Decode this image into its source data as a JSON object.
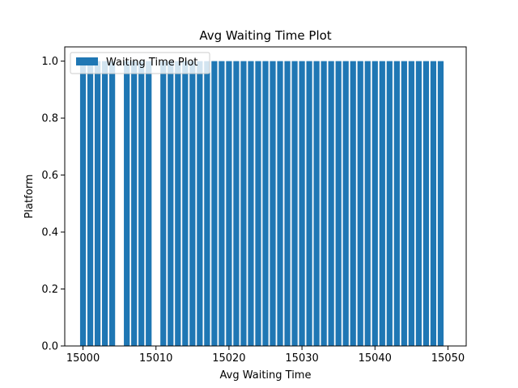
{
  "chart_data": {
    "type": "bar",
    "title": "Avg Waiting Time Plot",
    "xlabel": "Avg Waiting Time",
    "ylabel": "Platform",
    "xlim": [
      14997.5,
      15052.5
    ],
    "ylim": [
      0,
      1.05
    ],
    "xticks": [
      15000,
      15010,
      15020,
      15030,
      15040,
      15050
    ],
    "yticks": [
      0.0,
      0.2,
      0.4,
      0.6,
      0.8,
      1.0
    ],
    "xtick_labels": [
      "15000",
      "15010",
      "15020",
      "15030",
      "15040",
      "15050"
    ],
    "ytick_labels": [
      "0.0",
      "0.2",
      "0.4",
      "0.6",
      "0.8",
      "1.0"
    ],
    "legend": {
      "position": "top-left",
      "entries": [
        "Waiting Time Plot"
      ]
    },
    "grid": false,
    "series": [
      {
        "name": "Waiting Time Plot",
        "color": "#1f77b4",
        "bar_width": 0.8,
        "x": [
          15000,
          15001,
          15002,
          15003,
          15004,
          15006,
          15007,
          15008,
          15009,
          15011,
          15012,
          15013,
          15014,
          15015,
          15016,
          15017,
          15018,
          15019,
          15020,
          15021,
          15022,
          15023,
          15024,
          15025,
          15026,
          15027,
          15028,
          15029,
          15030,
          15031,
          15032,
          15033,
          15034,
          15035,
          15036,
          15037,
          15038,
          15039,
          15040,
          15041,
          15042,
          15043,
          15044,
          15045,
          15046,
          15047,
          15048,
          15049
        ],
        "values": [
          1,
          1,
          1,
          1,
          1,
          1,
          1,
          1,
          1,
          1,
          1,
          1,
          1,
          1,
          1,
          1,
          1,
          1,
          1,
          1,
          1,
          1,
          1,
          1,
          1,
          1,
          1,
          1,
          1,
          1,
          1,
          1,
          1,
          1,
          1,
          1,
          1,
          1,
          1,
          1,
          1,
          1,
          1,
          1,
          1,
          1,
          1,
          1
        ]
      }
    ]
  }
}
